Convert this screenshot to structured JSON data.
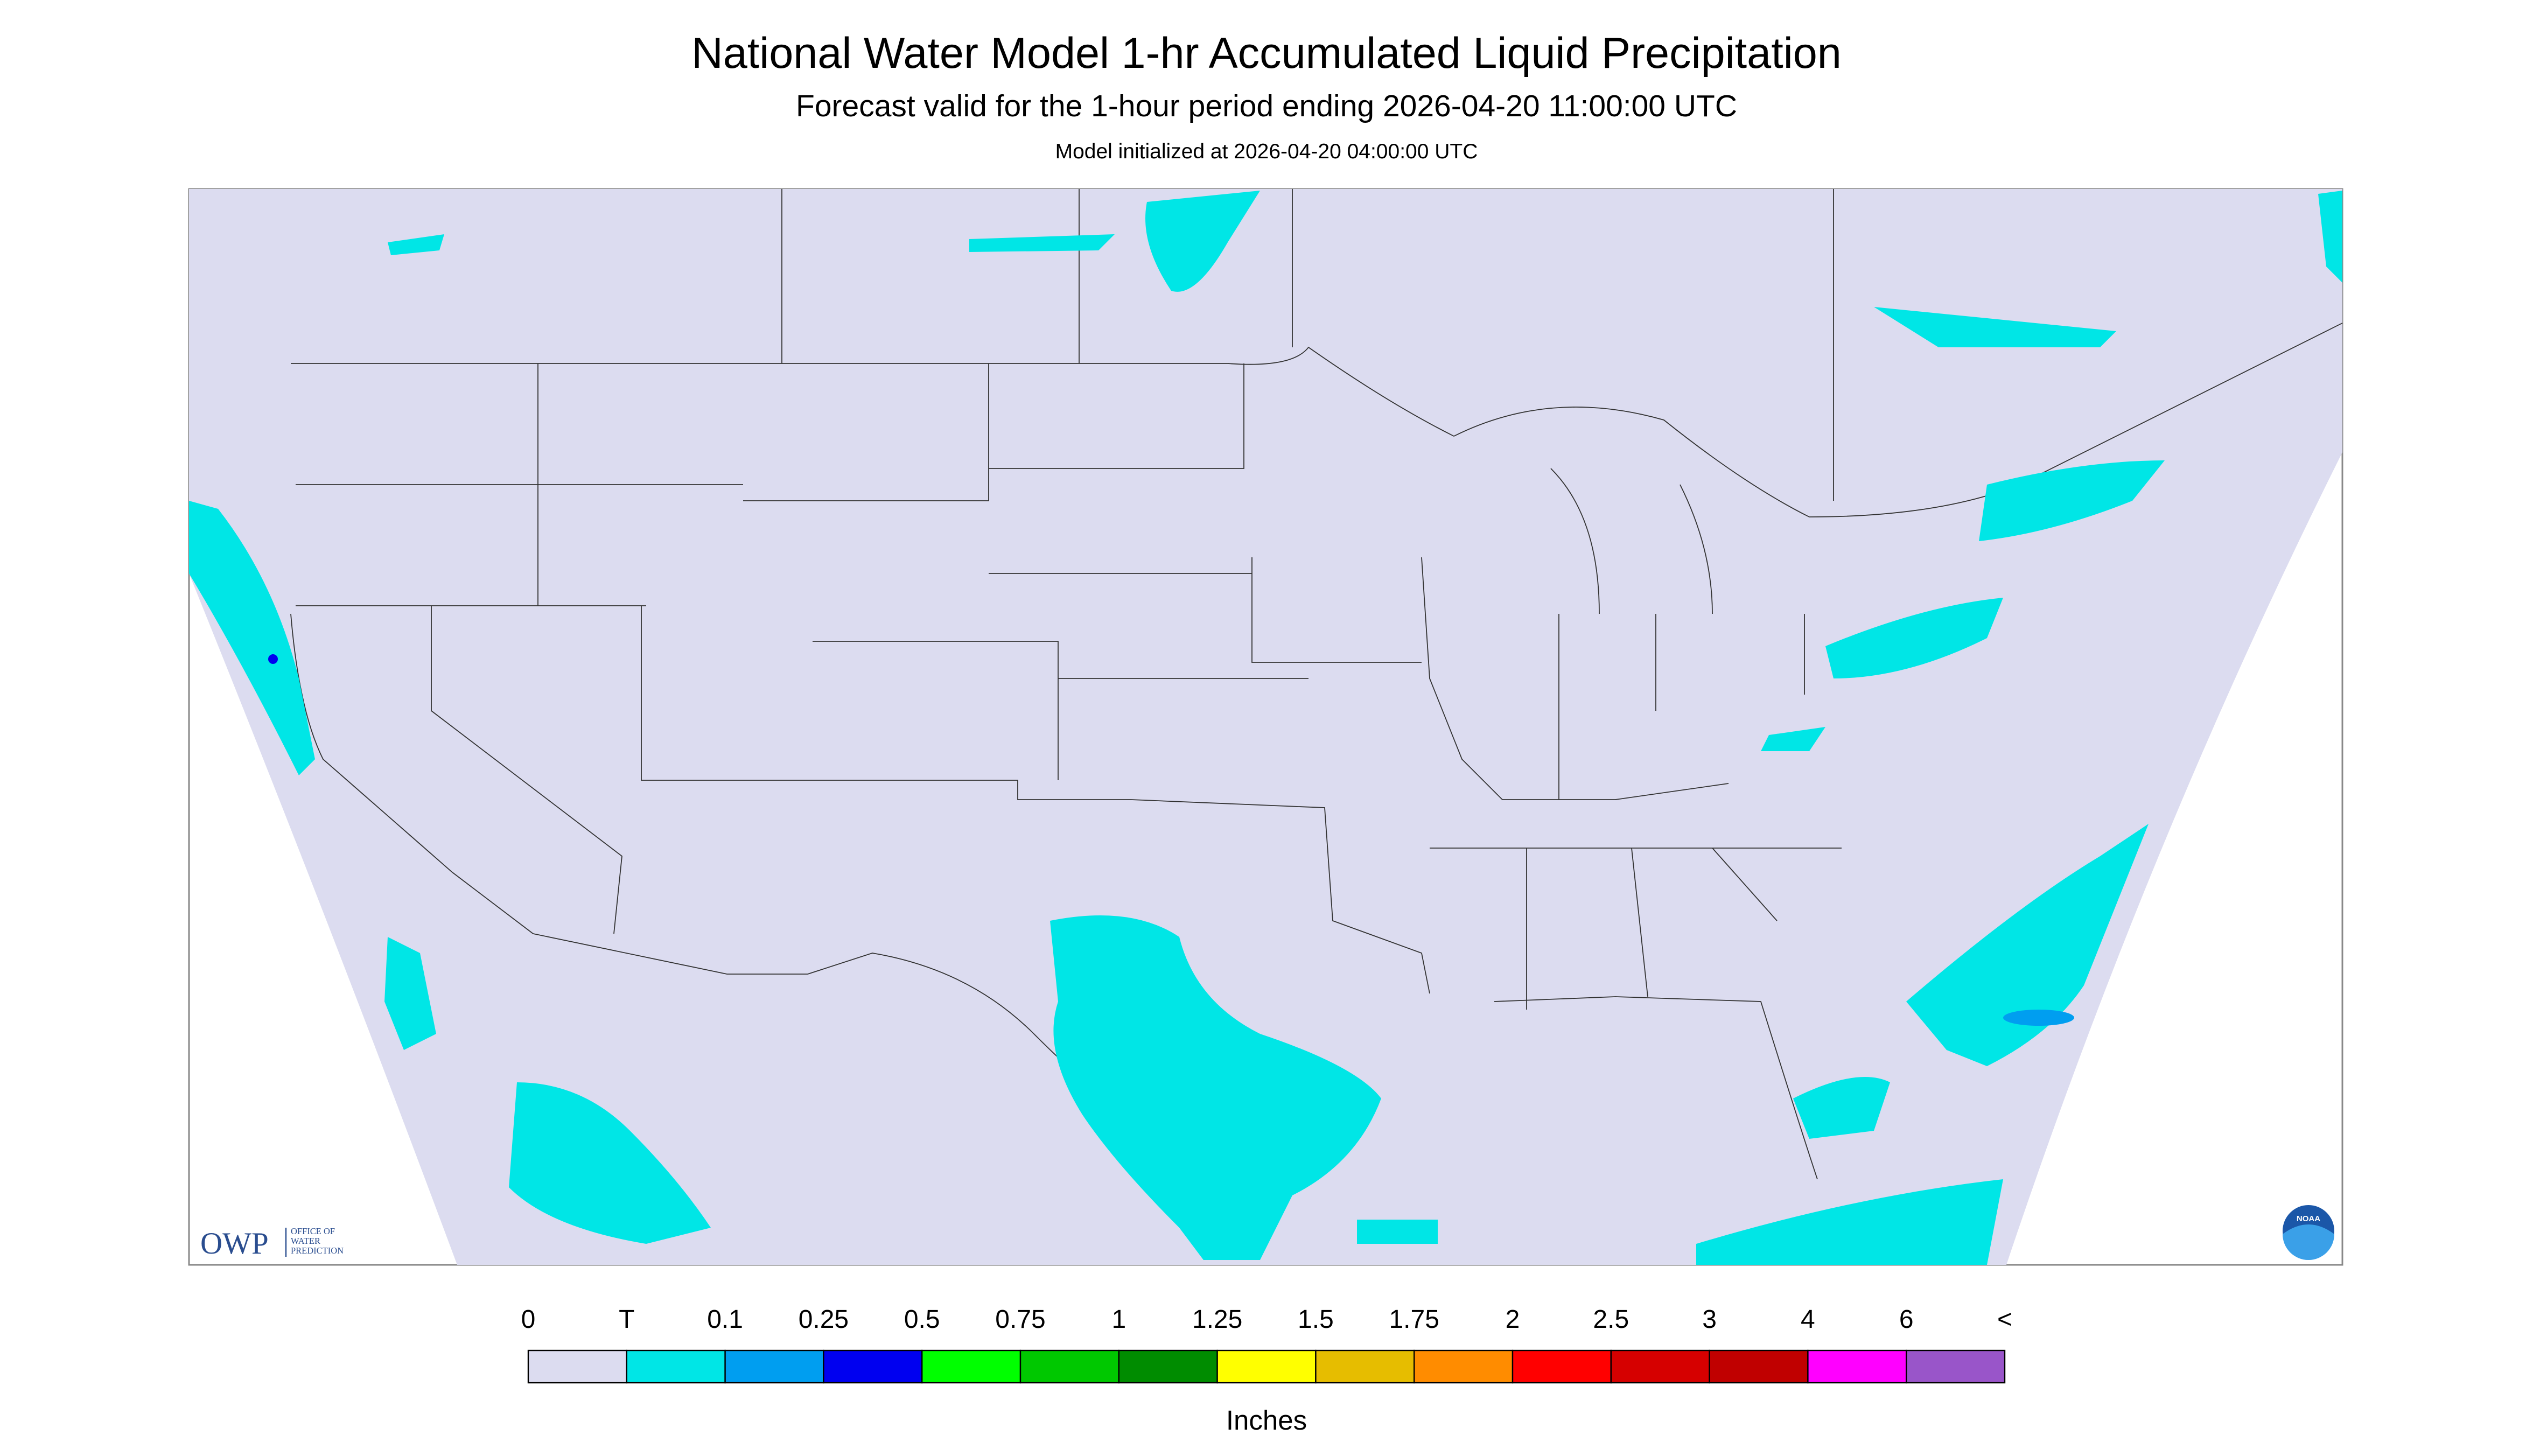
{
  "header": {
    "title": "National Water Model 1-hr Accumulated Liquid Precipitation",
    "subtitle": "Forecast valid for the 1-hour period ending 2026-04-20 11:00:00 UTC",
    "init": "Model initialized at 2026-04-20 04:00:00 UTC"
  },
  "legend": {
    "labels": [
      "0",
      "T",
      "0.1",
      "0.25",
      "0.5",
      "0.75",
      "1",
      "1.25",
      "1.5",
      "1.75",
      "2",
      "2.5",
      "3",
      "4",
      "6",
      "<"
    ],
    "colors": [
      "#dcdcf0",
      "#00e6e6",
      "#009ef0",
      "#0000f0",
      "#00ff00",
      "#00c800",
      "#008c00",
      "#ffff00",
      "#e6bd00",
      "#ff8c00",
      "#ff0000",
      "#d60000",
      "#c00000",
      "#ff00ff",
      "#9955c9"
    ],
    "unit": "Inches"
  },
  "logos": {
    "owp": "OWP",
    "owp_lines": [
      "OFFICE OF",
      "WATER",
      "PREDICTION"
    ],
    "noaa": "NOAA"
  }
}
